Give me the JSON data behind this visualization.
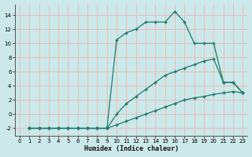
{
  "background_color": "#cce8e8",
  "grid_color": "#e8b8b8",
  "line_color": "#1a7a6a",
  "xlabel": "Humidex (Indice chaleur)",
  "xlim": [
    -0.5,
    23.5
  ],
  "ylim": [
    -3.0,
    15.5
  ],
  "xticks": [
    0,
    1,
    2,
    3,
    4,
    5,
    6,
    7,
    8,
    9,
    10,
    11,
    12,
    13,
    14,
    15,
    16,
    17,
    18,
    19,
    20,
    21,
    22,
    23
  ],
  "yticks": [
    -2,
    0,
    2,
    4,
    6,
    8,
    10,
    12,
    14
  ],
  "line1_x": [
    1,
    2,
    3,
    4,
    5,
    6,
    7,
    8,
    9,
    10,
    11,
    12,
    13,
    14,
    15,
    16,
    17,
    18,
    19,
    20,
    21,
    22,
    23
  ],
  "line1_y": [
    -2,
    -2,
    -2,
    -2,
    -2,
    -2,
    -2,
    -2,
    -2,
    -1.5,
    -1.0,
    -0.5,
    0.0,
    0.5,
    1.0,
    1.5,
    2.0,
    2.3,
    2.5,
    2.8,
    3.0,
    3.2,
    3.0
  ],
  "line2_x": [
    1,
    2,
    3,
    4,
    5,
    6,
    7,
    8,
    9,
    10,
    11,
    12,
    13,
    14,
    15,
    16,
    17,
    18,
    19,
    20,
    21,
    22,
    23
  ],
  "line2_y": [
    -2,
    -2,
    -2,
    -2,
    -2,
    -2,
    -2,
    -2,
    -2,
    0.0,
    1.5,
    2.5,
    3.5,
    4.5,
    5.5,
    6.0,
    6.5,
    7.0,
    7.5,
    7.8,
    4.5,
    4.5,
    3.0
  ],
  "line3_x": [
    1,
    2,
    3,
    4,
    5,
    6,
    7,
    8,
    9,
    10,
    11,
    12,
    13,
    14,
    15,
    16,
    17,
    18,
    19,
    20,
    21,
    22,
    23
  ],
  "line3_y": [
    -2,
    -2,
    -2,
    -2,
    -2,
    -2,
    -2,
    -2,
    -2,
    10.5,
    11.5,
    12.0,
    13.0,
    13.0,
    13.0,
    14.5,
    13.0,
    10.0,
    10.0,
    10.0,
    4.5,
    4.5,
    3.0
  ]
}
